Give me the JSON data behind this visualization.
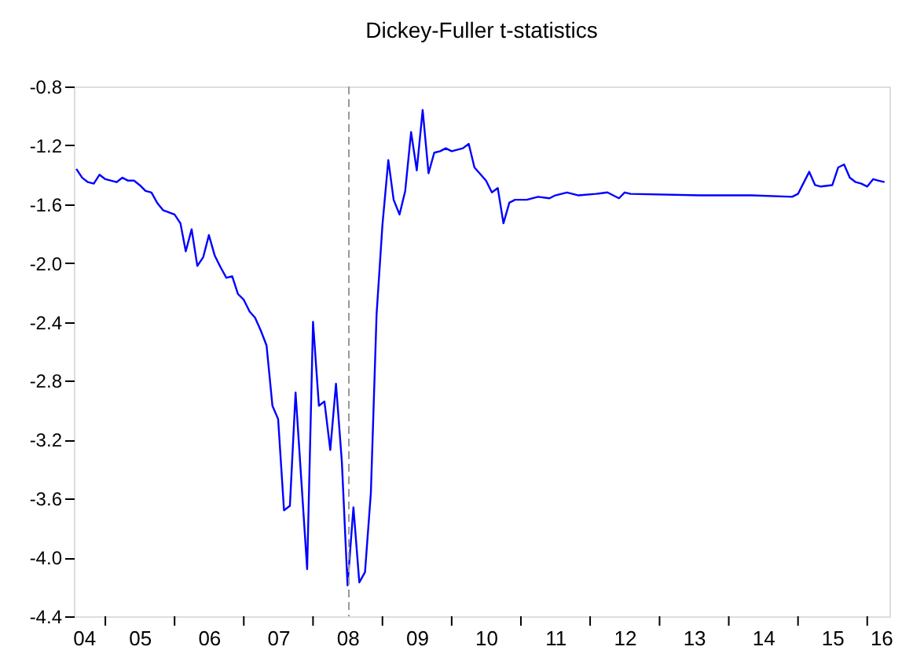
{
  "chart_data": {
    "type": "line",
    "title": "Dickey-Fuller t-statistics",
    "x": [
      "2004-08",
      "2004-09",
      "2004-10",
      "2004-11",
      "2004-12",
      "2005-01",
      "2005-02",
      "2005-03",
      "2005-04",
      "2005-05",
      "2005-06",
      "2005-07",
      "2005-08",
      "2005-09",
      "2005-10",
      "2005-11",
      "2006-01",
      "2006-02",
      "2006-03",
      "2006-04",
      "2006-05",
      "2006-06",
      "2006-07",
      "2006-08",
      "2006-09",
      "2006-10",
      "2006-11",
      "2006-12",
      "2007-01",
      "2007-02",
      "2007-03",
      "2007-04",
      "2007-05",
      "2007-06",
      "2007-07",
      "2007-08",
      "2007-09",
      "2007-10",
      "2007-11",
      "2007-12",
      "2008-01",
      "2008-02",
      "2008-03",
      "2008-04",
      "2008-05",
      "2008-06",
      "2008-07",
      "2008-08",
      "2008-09",
      "2008-10",
      "2008-11",
      "2008-12",
      "2009-01",
      "2009-02",
      "2009-03",
      "2009-04",
      "2009-05",
      "2009-06",
      "2009-07",
      "2009-08",
      "2009-09",
      "2009-10",
      "2009-11",
      "2009-12",
      "2010-01",
      "2010-03",
      "2010-04",
      "2010-05",
      "2010-07",
      "2010-08",
      "2010-09",
      "2010-10",
      "2010-11",
      "2010-12",
      "2011-02",
      "2011-04",
      "2011-06",
      "2011-07",
      "2011-09",
      "2011-11",
      "2012-02",
      "2012-04",
      "2012-06",
      "2012-07",
      "2012-08",
      "2013-08",
      "2014-05",
      "2014-12",
      "2015-01",
      "2015-03",
      "2015-04",
      "2015-05",
      "2015-07",
      "2015-08",
      "2015-09",
      "2015-10",
      "2015-11",
      "2015-12",
      "2016-01",
      "2016-02",
      "2016-03",
      "2016-04"
    ],
    "series": [
      {
        "color": "#0000ff",
        "values": [
          -1.36,
          -1.42,
          -1.45,
          -1.46,
          -1.4,
          -1.43,
          -1.44,
          -1.45,
          -1.42,
          -1.44,
          -1.44,
          -1.47,
          -1.51,
          -1.52,
          -1.59,
          -1.64,
          -1.67,
          -1.73,
          -1.92,
          -1.77,
          -2.02,
          -1.96,
          -1.81,
          -1.95,
          -2.03,
          -2.1,
          -2.09,
          -2.21,
          -2.25,
          -2.33,
          -2.37,
          -2.46,
          -2.56,
          -2.97,
          -3.06,
          -3.68,
          -3.65,
          -2.88,
          -3.49,
          -4.08,
          -2.4,
          -2.97,
          -2.94,
          -3.27,
          -2.82,
          -3.35,
          -4.19,
          -3.66,
          -4.17,
          -4.1,
          -3.56,
          -2.35,
          -1.74,
          -1.3,
          -1.57,
          -1.67,
          -1.51,
          -1.11,
          -1.37,
          -0.96,
          -1.39,
          -1.25,
          -1.24,
          -1.22,
          -1.24,
          -1.22,
          -1.19,
          -1.35,
          -1.44,
          -1.52,
          -1.49,
          -1.73,
          -1.59,
          -1.57,
          -1.57,
          -1.55,
          -1.56,
          -1.54,
          -1.52,
          -1.54,
          -1.53,
          -1.52,
          -1.56,
          -1.52,
          -1.53,
          -1.54,
          -1.54,
          -1.55,
          -1.53,
          -1.38,
          -1.47,
          -1.48,
          -1.47,
          -1.35,
          -1.33,
          -1.42,
          -1.45,
          -1.46,
          -1.48,
          -1.43,
          -1.44,
          -1.45
        ]
      }
    ],
    "xlim": [
      "2004-07-19",
      "2016-04-27"
    ],
    "xticks": [
      {
        "value": "2004-09-10",
        "label": "04"
      },
      {
        "value": "2005-07-01",
        "label": "05"
      },
      {
        "value": "2006-07-01",
        "label": "06"
      },
      {
        "value": "2007-07-01",
        "label": "07"
      },
      {
        "value": "2008-07-01",
        "label": "08"
      },
      {
        "value": "2009-07-01",
        "label": "09"
      },
      {
        "value": "2010-07-01",
        "label": "10"
      },
      {
        "value": "2011-07-01",
        "label": "11"
      },
      {
        "value": "2012-07-01",
        "label": "12"
      },
      {
        "value": "2013-07-01",
        "label": "13"
      },
      {
        "value": "2014-07-01",
        "label": "14"
      },
      {
        "value": "2015-07-01",
        "label": "15"
      },
      {
        "value": "2016-03-14",
        "label": "16"
      },
      {
        "value": "2005-01-01",
        "label": null
      },
      {
        "value": "2006-01-01",
        "label": null
      },
      {
        "value": "2007-01-01",
        "label": null
      },
      {
        "value": "2008-01-01",
        "label": null
      },
      {
        "value": "2009-01-01",
        "label": null
      },
      {
        "value": "2010-01-01",
        "label": null
      },
      {
        "value": "2011-01-01",
        "label": null
      },
      {
        "value": "2012-01-01",
        "label": null
      },
      {
        "value": "2013-01-01",
        "label": null
      },
      {
        "value": "2014-01-01",
        "label": null
      },
      {
        "value": "2015-01-01",
        "label": null
      },
      {
        "value": "2016-01-01",
        "label": null
      }
    ],
    "ylim": [
      -4.4,
      -0.8
    ],
    "yticks": [
      -0.8,
      -1.2,
      -1.6,
      {
        "value": -2.0,
        "label": "-2.0"
      },
      -2.4,
      -2.8,
      -3.2,
      -3.6,
      {
        "value": -4.0,
        "label": "-4.0"
      },
      -4.4
    ],
    "ref_lines": [
      {
        "axis": "x",
        "value": "2008-07-08",
        "color": "#999999",
        "line_style": "dashed"
      }
    ],
    "grid": false,
    "marker": "none",
    "line_style": "solid"
  }
}
